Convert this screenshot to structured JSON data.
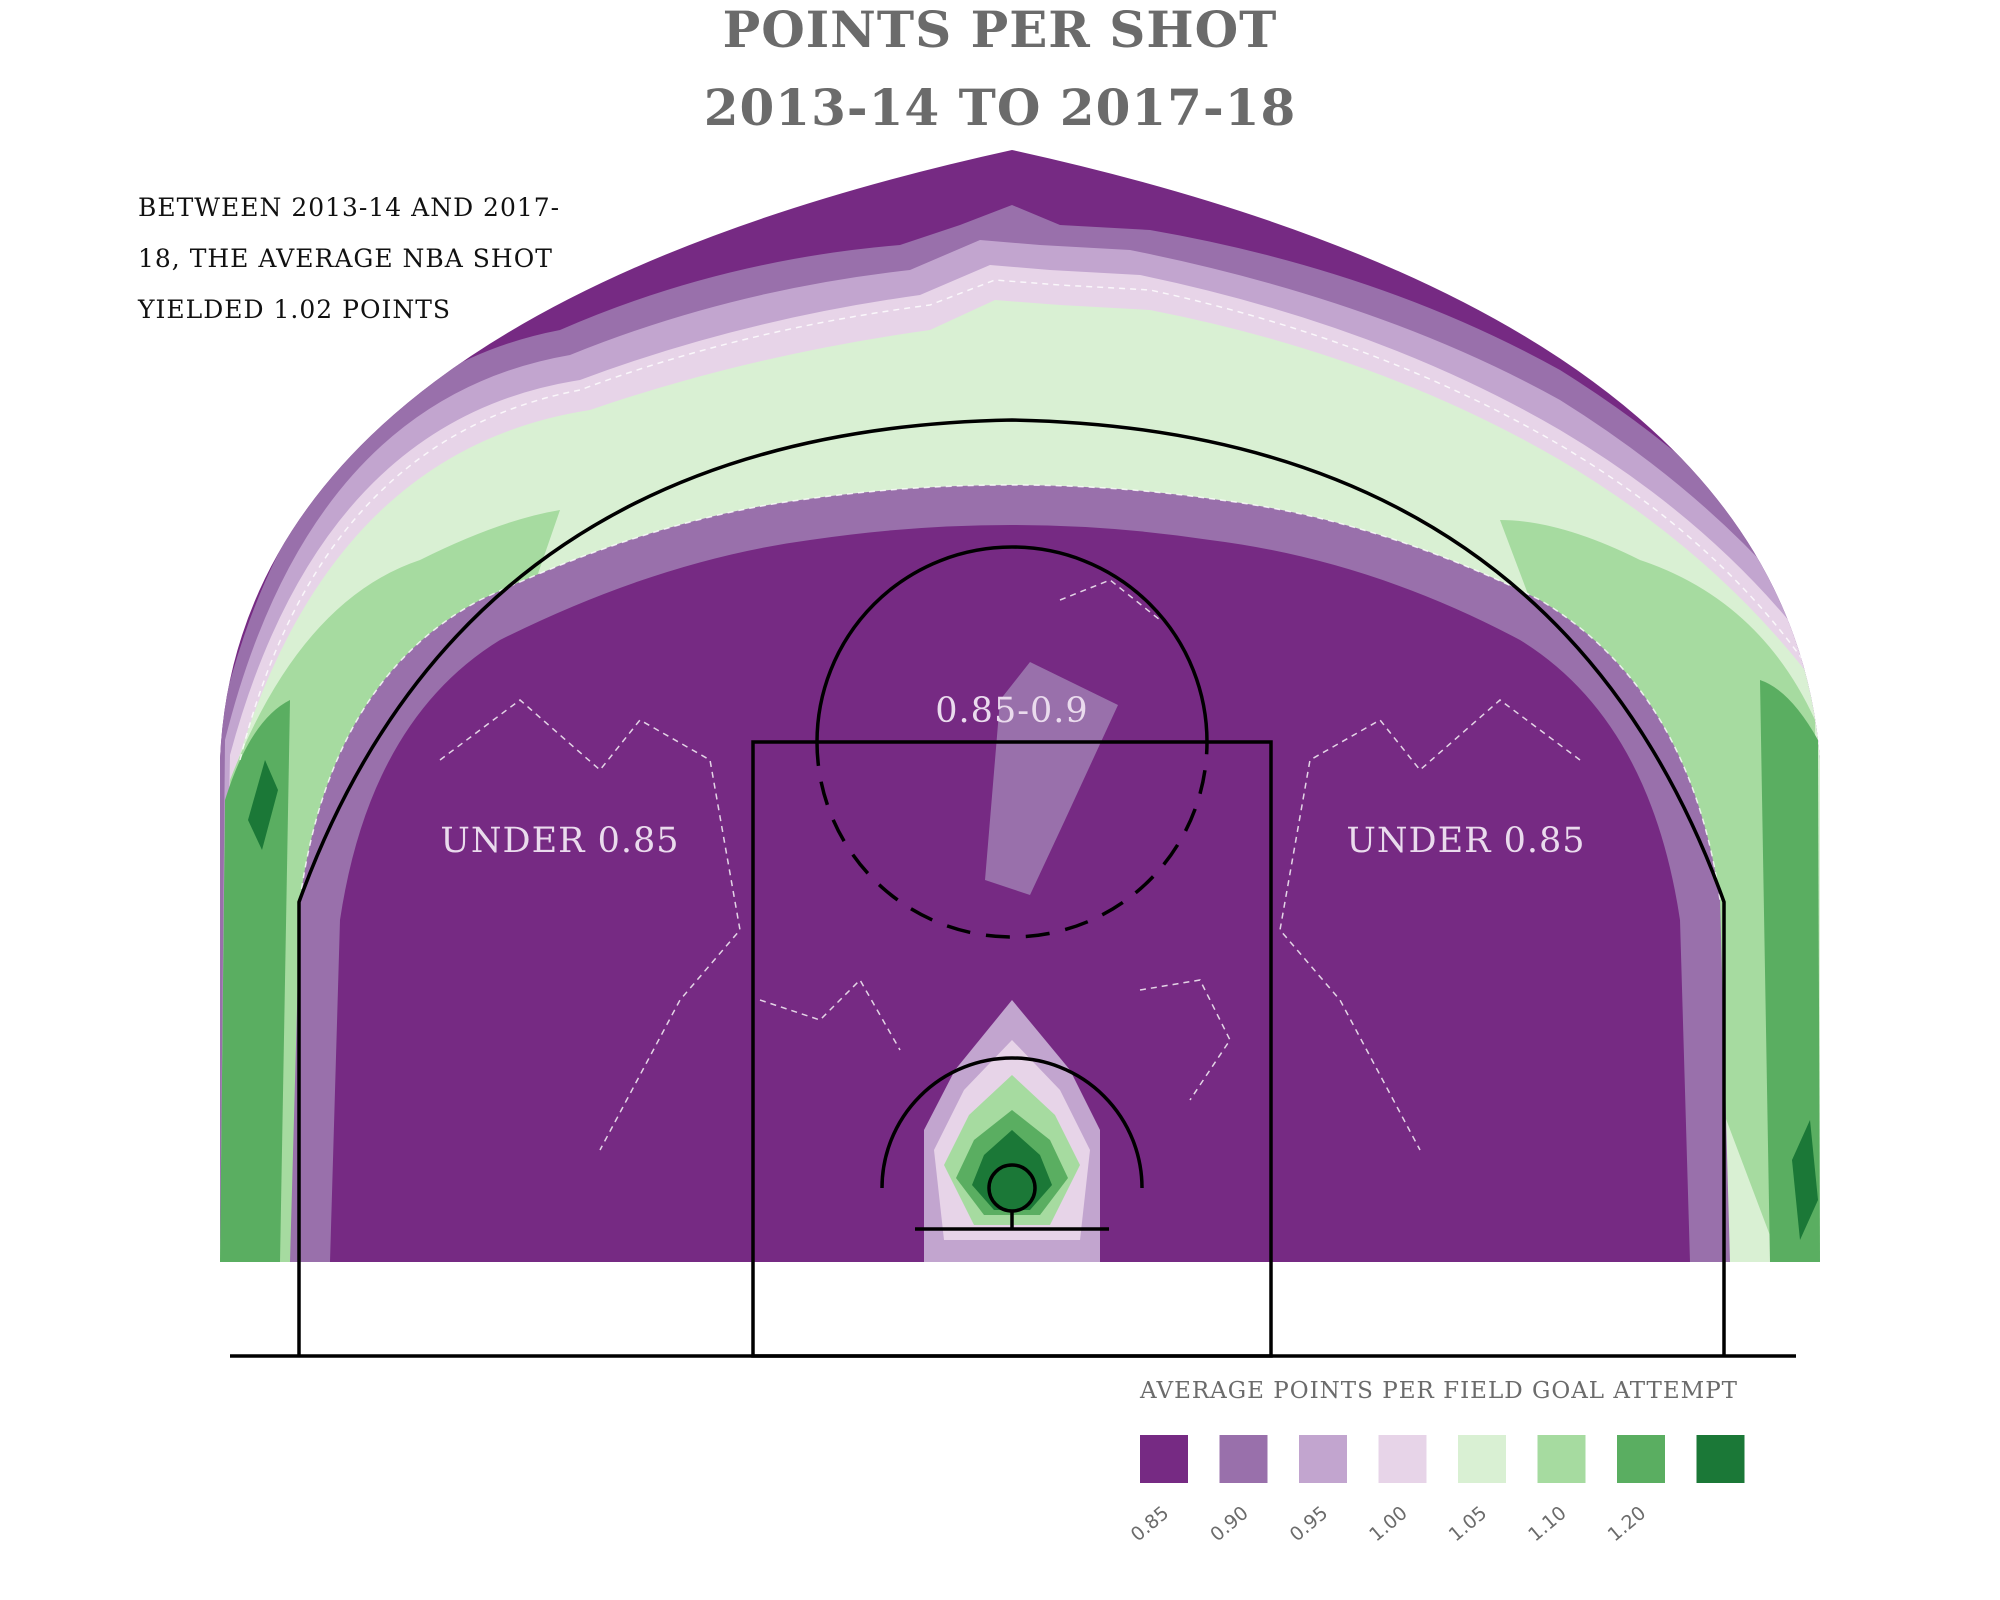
{
  "chart_data": {
    "type": "heatmap",
    "title": "POINTS PER SHOT",
    "subtitle": "2013-14 TO 2017-18",
    "note": "BETWEEN 2013-14 AND 2017-18, THE AVERAGE NBA SHOT YIELDED 1.02 POINTS",
    "legend": {
      "title": "AVERAGE POINTS PER FIELD GOAL ATTEMPT",
      "placement": "bottom-right",
      "bins": [
        {
          "label": "0.85",
          "color": "#762a83"
        },
        {
          "label": "0.90",
          "color": "#9970ab"
        },
        {
          "label": "0.95",
          "color": "#c2a5cf"
        },
        {
          "label": "1.00",
          "color": "#e7d4e8"
        },
        {
          "label": "1.05",
          "color": "#d9f0d3"
        },
        {
          "label": "1.10",
          "color": "#a6dba0"
        },
        {
          "label": "1.20",
          "color": "#5aae61"
        },
        {
          "label": "",
          "color": "#1b7837"
        }
      ]
    },
    "zones": [
      {
        "label": "UNDER 0.85",
        "side": "left"
      },
      {
        "label": "0.85-0.9",
        "side": "center"
      },
      {
        "label": "UNDER 0.85",
        "side": "right"
      }
    ]
  }
}
